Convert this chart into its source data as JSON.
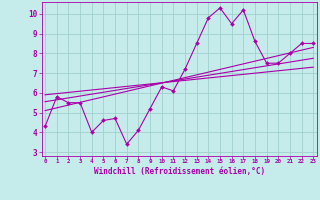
{
  "xlabel": "Windchill (Refroidissement éolien,°C)",
  "bg_color": "#c5ecea",
  "grid_color": "#a0d0cc",
  "line_color": "#aa00aa",
  "x_data": [
    0,
    1,
    2,
    3,
    4,
    5,
    6,
    7,
    8,
    9,
    10,
    11,
    12,
    13,
    14,
    15,
    16,
    17,
    18,
    19,
    20,
    21,
    22,
    23
  ],
  "y_data": [
    4.3,
    5.8,
    5.5,
    5.5,
    4.0,
    4.6,
    4.7,
    3.4,
    4.1,
    5.2,
    6.3,
    6.1,
    7.2,
    8.5,
    9.8,
    10.3,
    9.5,
    10.2,
    8.6,
    7.5,
    7.5,
    8.0,
    8.5,
    8.5
  ],
  "trend1_x": [
    0,
    23
  ],
  "trend1_y": [
    5.55,
    7.75
  ],
  "trend2_x": [
    0,
    23
  ],
  "trend2_y": [
    5.1,
    8.3
  ],
  "trend3_x": [
    0,
    23
  ],
  "trend3_y": [
    5.9,
    7.3
  ],
  "xlim": [
    -0.3,
    23.3
  ],
  "ylim": [
    2.8,
    10.6
  ],
  "yticks": [
    3,
    4,
    5,
    6,
    7,
    8,
    9,
    10
  ],
  "xticks": [
    0,
    1,
    2,
    3,
    4,
    5,
    6,
    7,
    8,
    9,
    10,
    11,
    12,
    13,
    14,
    15,
    16,
    17,
    18,
    19,
    20,
    21,
    22,
    23
  ]
}
